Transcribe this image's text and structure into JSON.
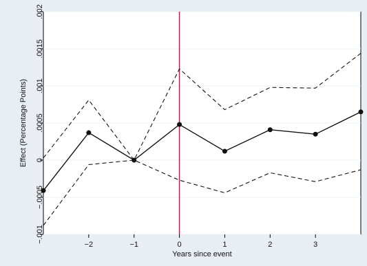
{
  "chart_data": {
    "type": "line",
    "title": "",
    "xlabel": "Years since event",
    "ylabel": "Effect (Percentage Points)",
    "x": [
      -3,
      -2,
      -1,
      0,
      1,
      2,
      3,
      4
    ],
    "x_ticks": [
      -2,
      -1,
      0,
      1,
      2,
      3
    ],
    "x_tick_labels": [
      "−2",
      "−1",
      "0",
      "1",
      "2",
      "3"
    ],
    "xlim": [
      -3,
      4
    ],
    "ylim": [
      -0.001,
      0.002
    ],
    "y_ticks": [
      -0.001,
      -0.0005,
      0,
      0.0005,
      0.001,
      0.0015,
      0.002
    ],
    "y_tick_labels": [
      "−.001",
      "−.0005",
      "0",
      ".0005",
      ".001",
      ".0015",
      ".002"
    ],
    "grid": true,
    "reference_line": {
      "axis": "x",
      "value": 0,
      "color": "#c2185b"
    },
    "series": [
      {
        "values": [
          -0.00041,
          0.00037,
          0.0,
          0.00048,
          0.00012,
          0.00041,
          0.00035,
          0.00065
        ],
        "style": "solid-with-markers",
        "color": "#111111"
      },
      {
        "values": [
          3e-05,
          0.00081,
          0.0,
          0.00123,
          0.00068,
          0.00098,
          0.00097,
          0.00144
        ],
        "style": "dashed",
        "color": "#111111"
      },
      {
        "values": [
          -0.00088,
          -6e-05,
          0.0,
          -0.00027,
          -0.00044,
          -0.00017,
          -0.00029,
          -0.00013
        ],
        "style": "dashed",
        "color": "#111111"
      }
    ]
  }
}
